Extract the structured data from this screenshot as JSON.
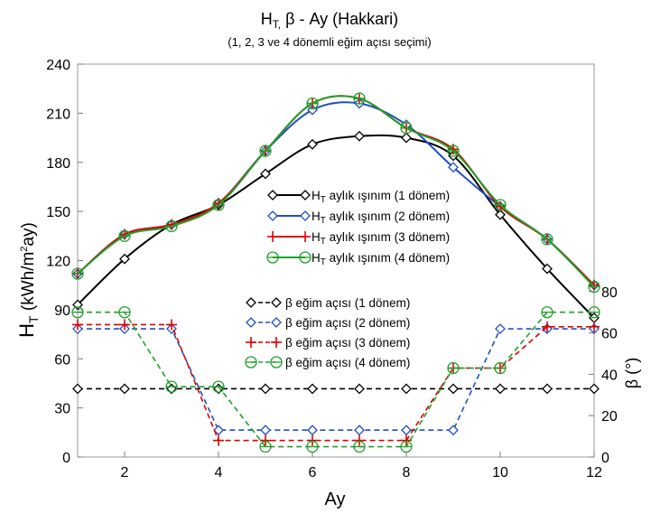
{
  "chart_data": {
    "type": "line",
    "title_main": "H",
    "title_sub_t": "T,",
    "title_rest": " β - Ay (Hakkari)",
    "subtitle": "(1, 2, 3 ve 4 dönemli eğim açısı seçimi)",
    "xlabel": "Ay",
    "ylabel_left_h": "H",
    "ylabel_left_sub": "T",
    "ylabel_left_rest": " (kWh/m",
    "ylabel_left_sup": "2",
    "ylabel_left_end": "ay)",
    "ylabel_right": "β (°)",
    "x": [
      1,
      2,
      3,
      4,
      5,
      6,
      7,
      8,
      9,
      10,
      11,
      12
    ],
    "xlim": [
      1,
      12
    ],
    "xticks": [
      2,
      4,
      6,
      8,
      10,
      12
    ],
    "ylim_left": [
      0,
      240
    ],
    "yticks_left": [
      0,
      30,
      60,
      90,
      120,
      150,
      180,
      210,
      240
    ],
    "ylim_right": [
      0,
      190
    ],
    "yticks_right": [
      0,
      20,
      40,
      60,
      80
    ],
    "grid": false,
    "radiation_series": [
      {
        "name": "H",
        "sub": "T",
        "label_rest": " aylık ışınım (1 dönem)",
        "color": "#000000",
        "marker": "diamond",
        "values": [
          93,
          121,
          142,
          154,
          173,
          191,
          196,
          195,
          184,
          148,
          115,
          85
        ]
      },
      {
        "name": "H",
        "sub": "T",
        "label_rest": " aylık ışınım (2 dönem)",
        "color": "#1f4fbf",
        "marker": "diamond",
        "values": [
          112,
          136,
          142,
          155,
          187,
          212,
          216,
          203,
          177,
          153,
          133,
          105
        ]
      },
      {
        "name": "H",
        "sub": "T",
        "label_rest": " aylık ışınım (3 dönem)",
        "color": "#e00000",
        "marker": "plus",
        "values": [
          112,
          136,
          142,
          155,
          187,
          216,
          219,
          201,
          188,
          153,
          133,
          105
        ]
      },
      {
        "name": "H",
        "sub": "T",
        "label_rest": " aylık ışınım (4 dönem)",
        "color": "#1fa02a",
        "marker": "circle",
        "values": [
          112,
          135,
          141,
          154,
          187,
          216,
          219,
          201,
          187,
          154,
          133,
          104
        ]
      }
    ],
    "angle_series": [
      {
        "name": "β eğim açısı (1 dönem)",
        "color": "#000000",
        "marker": "diamond",
        "values": [
          33,
          33,
          33,
          33,
          33,
          33,
          33,
          33,
          33,
          33,
          33,
          33
        ]
      },
      {
        "name": "β eğim açısı (2 dönem)",
        "color": "#1f4fbf",
        "marker": "diamond",
        "values": [
          62,
          62,
          62,
          13,
          13,
          13,
          13,
          13,
          13,
          62,
          62,
          62
        ]
      },
      {
        "name": "β eğim açısı (3 dönem)",
        "color": "#e00000",
        "marker": "plus",
        "values": [
          64,
          64,
          64,
          8,
          8,
          8,
          8,
          8,
          43,
          43,
          63,
          63
        ]
      },
      {
        "name": "β eğim açısı (4 dönem)",
        "color": "#1fa02a",
        "marker": "circle",
        "values": [
          70,
          70,
          34,
          34,
          5,
          5,
          5,
          5,
          43,
          43,
          70,
          70
        ]
      }
    ]
  }
}
